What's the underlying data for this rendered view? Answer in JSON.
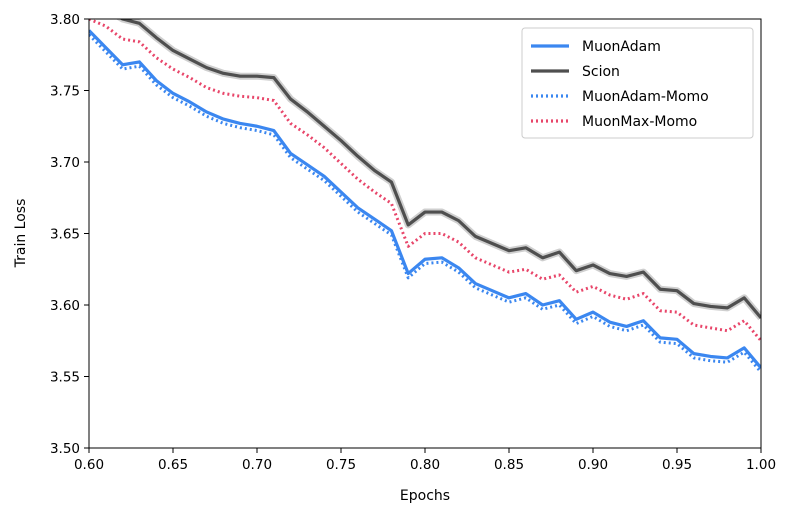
{
  "chart_data": {
    "type": "line",
    "title": "",
    "xlabel": "Epochs",
    "ylabel": "Train Loss",
    "xlim": [
      0.6,
      1.0
    ],
    "ylim": [
      3.5,
      3.8
    ],
    "xticks": [
      "0.60",
      "0.65",
      "0.70",
      "0.75",
      "0.80",
      "0.85",
      "0.90",
      "0.95",
      "1.00"
    ],
    "yticks": [
      "3.50",
      "3.55",
      "3.60",
      "3.65",
      "3.70",
      "3.75",
      "3.80"
    ],
    "grid": false,
    "legend_position": "top-right",
    "x": [
      0.6,
      0.61,
      0.62,
      0.63,
      0.64,
      0.65,
      0.66,
      0.67,
      0.68,
      0.69,
      0.7,
      0.71,
      0.72,
      0.73,
      0.74,
      0.75,
      0.76,
      0.77,
      0.78,
      0.79,
      0.8,
      0.81,
      0.82,
      0.83,
      0.84,
      0.85,
      0.86,
      0.87,
      0.88,
      0.89,
      0.9,
      0.91,
      0.92,
      0.93,
      0.94,
      0.95,
      0.96,
      0.97,
      0.98,
      0.99,
      1.0
    ],
    "series": [
      {
        "name": "MuonAdam",
        "color": "#3b87f0",
        "style": "solid",
        "values": [
          3.792,
          3.78,
          3.768,
          3.77,
          3.757,
          3.748,
          3.742,
          3.735,
          3.73,
          3.727,
          3.725,
          3.722,
          3.706,
          3.698,
          3.69,
          3.679,
          3.668,
          3.66,
          3.652,
          3.622,
          3.632,
          3.633,
          3.626,
          3.615,
          3.61,
          3.605,
          3.608,
          3.6,
          3.603,
          3.59,
          3.595,
          3.588,
          3.585,
          3.589,
          3.577,
          3.576,
          3.566,
          3.564,
          3.563,
          3.57,
          3.556
        ]
      },
      {
        "name": "Scion",
        "color": "#4f4f4f",
        "style": "solid",
        "values": [
          3.812,
          3.807,
          3.8,
          3.797,
          3.787,
          3.778,
          3.772,
          3.766,
          3.762,
          3.76,
          3.76,
          3.759,
          3.744,
          3.735,
          3.725,
          3.715,
          3.704,
          3.694,
          3.686,
          3.656,
          3.665,
          3.665,
          3.659,
          3.648,
          3.643,
          3.638,
          3.64,
          3.633,
          3.637,
          3.624,
          3.628,
          3.622,
          3.62,
          3.623,
          3.611,
          3.61,
          3.601,
          3.599,
          3.598,
          3.605,
          3.591
        ]
      },
      {
        "name": "MuonAdam-Momo",
        "color": "#3b87f0",
        "style": "dotted",
        "values": [
          3.789,
          3.777,
          3.765,
          3.767,
          3.754,
          3.745,
          3.739,
          3.732,
          3.727,
          3.724,
          3.722,
          3.719,
          3.703,
          3.695,
          3.687,
          3.676,
          3.665,
          3.657,
          3.649,
          3.619,
          3.629,
          3.63,
          3.623,
          3.612,
          3.607,
          3.602,
          3.605,
          3.597,
          3.6,
          3.587,
          3.592,
          3.585,
          3.582,
          3.586,
          3.574,
          3.573,
          3.563,
          3.561,
          3.56,
          3.567,
          3.553
        ]
      },
      {
        "name": "MuonMax-Momo",
        "color": "#e8466a",
        "style": "dotted",
        "values": [
          3.8,
          3.795,
          3.786,
          3.784,
          3.773,
          3.765,
          3.759,
          3.752,
          3.748,
          3.746,
          3.745,
          3.743,
          3.727,
          3.719,
          3.71,
          3.699,
          3.688,
          3.679,
          3.671,
          3.641,
          3.65,
          3.65,
          3.644,
          3.633,
          3.628,
          3.623,
          3.625,
          3.618,
          3.621,
          3.609,
          3.613,
          3.607,
          3.604,
          3.608,
          3.596,
          3.595,
          3.586,
          3.584,
          3.582,
          3.589,
          3.575
        ]
      }
    ]
  }
}
